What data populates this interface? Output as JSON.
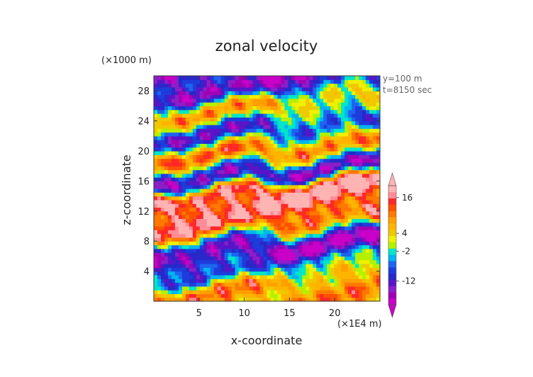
{
  "chart_data": {
    "type": "heatmap",
    "title": "zonal velocity",
    "xlabel": "x-coordinate",
    "ylabel": "z-coordinate",
    "x_unit": "(×1E4 m)",
    "y_unit": "(×1000 m)",
    "annotations": [
      "y=100 m",
      "t=8150 sec"
    ],
    "xlim": [
      0,
      25
    ],
    "ylim": [
      0,
      30
    ],
    "x_ticks": [
      5,
      10,
      15,
      20
    ],
    "y_ticks": [
      4,
      8,
      12,
      16,
      20,
      24,
      28
    ],
    "colorbar": {
      "tick_labels": [
        "16",
        "4",
        "-2",
        "-12"
      ],
      "tick_values": [
        16,
        4,
        -2,
        -12
      ],
      "range": [
        -20,
        20
      ],
      "extend": "both",
      "colors": [
        "#c800c8",
        "#a000b4",
        "#8c1ec8",
        "#5a14c8",
        "#2828c8",
        "#1e3cdc",
        "#1e64f0",
        "#00b4f0",
        "#00e6c8",
        "#b4f000",
        "#f0f000",
        "#f0c800",
        "#ffb400",
        "#ffa000",
        "#ff7800",
        "#ff5000",
        "#ff2828",
        "#ff8c96",
        "#ffb4b4"
      ]
    },
    "field_description_bands": [
      {
        "z": 2,
        "value": 8
      },
      {
        "z": 4.5,
        "value": -6
      },
      {
        "z": 7,
        "value": -16
      },
      {
        "z": 11,
        "value": 14
      },
      {
        "z": 14.5,
        "value": 18
      },
      {
        "z": 17,
        "value": -14
      },
      {
        "z": 20,
        "value": 10
      },
      {
        "z": 23,
        "value": -10
      },
      {
        "z": 26,
        "value": 6
      },
      {
        "z": 29,
        "value": -14
      }
    ]
  }
}
